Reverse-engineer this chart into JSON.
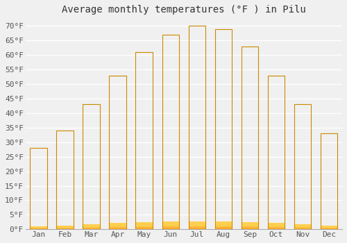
{
  "title": "Average monthly temperatures (°F ) in Pilu",
  "months": [
    "Jan",
    "Feb",
    "Mar",
    "Apr",
    "May",
    "Jun",
    "Jul",
    "Aug",
    "Sep",
    "Oct",
    "Nov",
    "Dec"
  ],
  "values": [
    28,
    34,
    43,
    53,
    61,
    67,
    70,
    69,
    63,
    53,
    43,
    33
  ],
  "ylim": [
    0,
    72
  ],
  "yticks": [
    0,
    5,
    10,
    15,
    20,
    25,
    30,
    35,
    40,
    45,
    50,
    55,
    60,
    65,
    70
  ],
  "ytick_labels": [
    "0°F",
    "5°F",
    "10°F",
    "15°F",
    "20°F",
    "25°F",
    "30°F",
    "35°F",
    "40°F",
    "45°F",
    "50°F",
    "55°F",
    "60°F",
    "65°F",
    "70°F"
  ],
  "background_color": "#f0f0f0",
  "grid_color": "#ffffff",
  "title_fontsize": 10,
  "tick_fontsize": 8,
  "bar_color_bottom": "#FFA020",
  "bar_color_top": "#FFD050",
  "bar_edge_color": "#CC8800"
}
